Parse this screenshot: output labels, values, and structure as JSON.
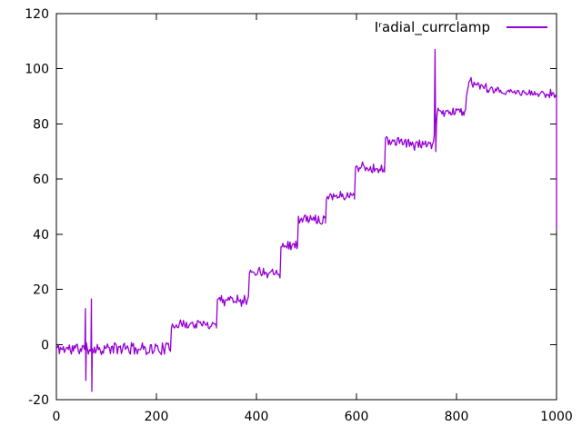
{
  "window": {
    "background": "#ffffff"
  },
  "chart_data": {
    "type": "line",
    "title": "",
    "xlabel": "",
    "ylabel": "",
    "xlim": [
      0,
      1000
    ],
    "ylim": [
      -20,
      120
    ],
    "xticks": [
      "0",
      "200",
      "400",
      "600",
      "800",
      "1000"
    ],
    "yticks": [
      "-20",
      "0",
      "20",
      "40",
      "60",
      "80",
      "100",
      "120"
    ],
    "grid": false,
    "legend_position": "top-right-inside",
    "axis_color": "#000000",
    "text_color": "#000000",
    "background": "#ffffff",
    "series": [
      {
        "name": "Iʳadial_currclamp",
        "color": "#9400d3",
        "line_width": 1.3,
        "noise_seed": 11,
        "segments": [
          {
            "x0": 0,
            "x1": 228,
            "y0": -1.5,
            "y1": -1.5,
            "noise": 2.2
          },
          {
            "x0": 228,
            "x1": 320,
            "y0": 7.3,
            "y1": 7.3,
            "noise": 1.6
          },
          {
            "x0": 320,
            "x1": 384,
            "y0": 16.5,
            "y1": 16.5,
            "noise": 1.6
          },
          {
            "x0": 384,
            "x1": 447,
            "y0": 26.5,
            "y1": 26.5,
            "noise": 1.6
          },
          {
            "x0": 447,
            "x1": 482,
            "y0": 36.0,
            "y1": 36.0,
            "noise": 1.6
          },
          {
            "x0": 482,
            "x1": 538,
            "y0": 45.5,
            "y1": 45.5,
            "noise": 1.6
          },
          {
            "x0": 538,
            "x1": 596,
            "y0": 54.0,
            "y1": 54.0,
            "noise": 1.6
          },
          {
            "x0": 596,
            "x1": 656,
            "y0": 64.5,
            "y1": 63.5,
            "noise": 1.7
          },
          {
            "x0": 656,
            "x1": 754,
            "y0": 74.0,
            "y1": 72.0,
            "noise": 1.6
          },
          {
            "x0": 761,
            "x1": 818,
            "y0": 84.5,
            "y1": 84.5,
            "noise": 1.5
          },
          {
            "x0": 818,
            "x1": 825,
            "y0": 89.0,
            "y1": 95.5,
            "noise": 0.8
          },
          {
            "x0": 825,
            "x1": 862,
            "y0": 95.0,
            "y1": 92.5,
            "noise": 1.2
          },
          {
            "x0": 862,
            "x1": 1000,
            "y0": 92.0,
            "y1": 90.5,
            "noise": 1.2
          }
        ],
        "events": [
          {
            "x": 58,
            "type": "bipolar",
            "high": 13,
            "low": -13
          },
          {
            "x": 70,
            "type": "bipolar",
            "high": 16.5,
            "low": -17
          },
          {
            "x": 757,
            "type": "transient",
            "pre": 76,
            "high": 107,
            "low": 70,
            "post": 80
          },
          {
            "x": 1000,
            "type": "drop",
            "to": 42
          }
        ]
      }
    ]
  }
}
